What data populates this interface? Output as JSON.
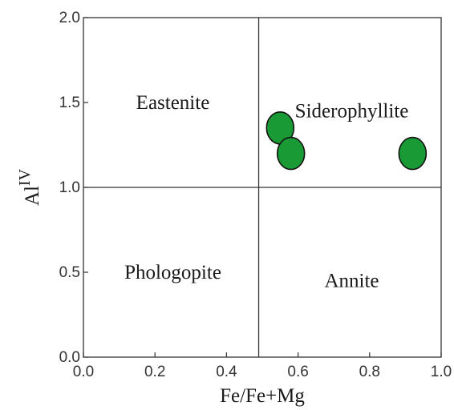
{
  "chart_data": {
    "type": "scatter",
    "xlabel": "Fe/Fe+Mg",
    "ylabel": {
      "base": "Al",
      "superscript": "IV"
    },
    "xlim": [
      0.0,
      1.0
    ],
    "ylim": [
      0.0,
      2.0
    ],
    "x_ticks": [
      "0.0",
      "0.2",
      "0.4",
      "0.6",
      "0.8",
      "1.0"
    ],
    "y_ticks": [
      "0.0",
      "0.5",
      "1.0",
      "1.5",
      "2.0"
    ],
    "divider_x": 0.49,
    "divider_y": 1.0,
    "regions": [
      {
        "label": "Eastenite",
        "x": 0.25,
        "y": 1.5
      },
      {
        "label": "Siderophyllite",
        "x": 0.75,
        "y": 1.45
      },
      {
        "label": "Phologopite",
        "x": 0.25,
        "y": 0.5
      },
      {
        "label": "Annite",
        "x": 0.75,
        "y": 0.45
      }
    ],
    "points": [
      {
        "x": 0.55,
        "y": 1.35
      },
      {
        "x": 0.58,
        "y": 1.2
      },
      {
        "x": 0.92,
        "y": 1.2
      }
    ],
    "marker_color": "#1a9a35",
    "marker_edge": "#111111",
    "grid": false
  }
}
